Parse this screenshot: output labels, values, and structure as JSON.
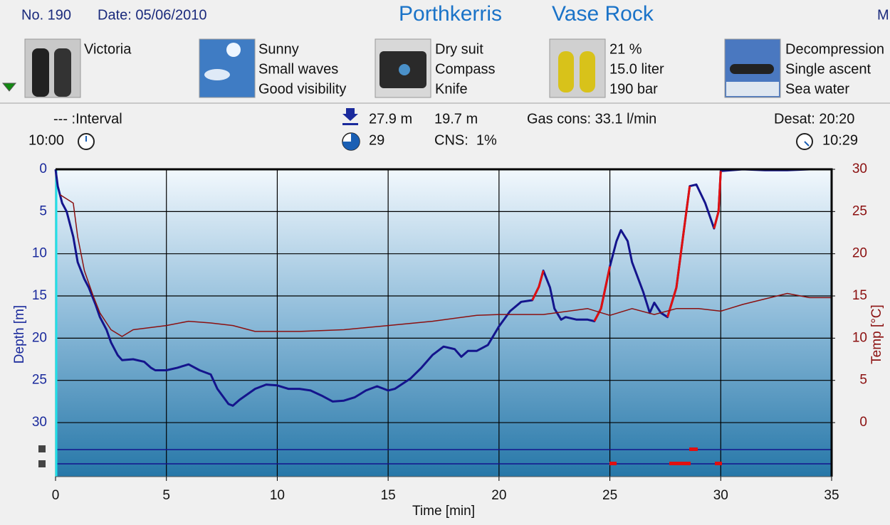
{
  "header": {
    "number": "No. 190",
    "date": "Date: 05/06/2010",
    "site": "Porthkerris",
    "location": "Vase Rock",
    "extra": "M"
  },
  "panels": [
    {
      "lines": [
        "Victoria"
      ]
    },
    {
      "lines": [
        "Sunny",
        "Small waves",
        "Good visibility"
      ]
    },
    {
      "lines": [
        "Dry suit",
        "Compass",
        "Knife"
      ]
    },
    {
      "lines": [
        "21 %",
        "15.0 liter",
        "190 bar"
      ]
    },
    {
      "lines": [
        "Decompression",
        "Single ascent",
        "Sea water"
      ]
    }
  ],
  "stats": {
    "interval": "--- :Interval",
    "surface_time": "10:00",
    "max_depth": "27.9 m",
    "avg_depth": "19.7 m",
    "gas": "Gas cons: 33.1 l/min",
    "desat": "Desat: 20:20",
    "duration": "29",
    "cns": "CNS:  1%",
    "end_time": "10:29"
  },
  "chart_data": {
    "type": "line",
    "xlabel": "Time [min]",
    "ylabel": "Depth [m]",
    "y2label": "Temp [°C]",
    "xlim": [
      0,
      35
    ],
    "xticks": [
      0,
      5,
      10,
      15,
      20,
      25,
      30,
      35
    ],
    "ylim": [
      0,
      36.4
    ],
    "y_reversed": true,
    "yticks": [
      0,
      5,
      10,
      15,
      20,
      25,
      30
    ],
    "y2lim": [
      -6.4,
      30
    ],
    "y2ticks": [
      0,
      5,
      10,
      15,
      20,
      25,
      30
    ],
    "grid": true,
    "series": [
      {
        "color": "#14148c",
        "x": [
          0,
          0.1,
          0.3,
          0.5,
          0.8,
          1,
          1.3,
          1.5,
          1.8,
          2,
          2.3,
          2.5,
          2.8,
          3,
          3.5,
          4,
          4.3,
          4.5,
          5,
          5.5,
          6,
          6.5,
          7,
          7.3,
          7.8,
          8,
          8.3,
          9,
          9.5,
          10,
          10.5,
          11,
          11.5,
          12,
          12.5,
          13,
          13.5,
          14,
          14.5,
          15,
          15.3,
          16,
          16.5,
          17,
          17.5,
          18,
          18.3,
          18.6,
          19,
          19.5,
          20,
          20.5,
          21,
          21.5,
          21.8,
          22,
          22.3,
          22.5,
          22.8,
          23,
          23.5,
          24,
          24.3,
          24.6,
          25,
          25.3,
          25.5,
          25.8,
          26,
          26.5,
          26.8,
          27,
          27.3,
          27.6,
          28,
          28.3,
          28.6,
          28.9,
          29.3,
          29.7,
          29.9,
          30,
          31,
          32,
          33,
          34,
          35
        ],
        "values": [
          0,
          2,
          4,
          5,
          8,
          11,
          13,
          14,
          16,
          17.5,
          19,
          20.5,
          22,
          22.6,
          22.5,
          22.8,
          23.5,
          23.8,
          23.8,
          23.5,
          23.1,
          23.8,
          24.3,
          26,
          27.8,
          28,
          27.3,
          26,
          25.5,
          25.6,
          26,
          26,
          26.2,
          26.8,
          27.5,
          27.4,
          27,
          26.2,
          25.7,
          26.2,
          26,
          24.8,
          23.5,
          22,
          21,
          21.3,
          22.2,
          21.5,
          21.5,
          20.8,
          18.6,
          16.8,
          15.7,
          15.5,
          13.9,
          12,
          14,
          16.5,
          17.8,
          17.5,
          17.8,
          17.8,
          18,
          16.5,
          11.5,
          8.5,
          7.2,
          8.5,
          11,
          14.5,
          17,
          15.8,
          17,
          17.5,
          14,
          8,
          2,
          1.8,
          4,
          7,
          5,
          0.2,
          0,
          0.1,
          0.1,
          0,
          0
        ]
      },
      {
        "color": "#e01010",
        "x": [
          21.5,
          21.8,
          22,
          null,
          24.3,
          24.6,
          25,
          null,
          27.6,
          28,
          28.3,
          28.6,
          null,
          29.7,
          29.9,
          30
        ],
        "values": [
          15.5,
          13.9,
          12,
          null,
          18,
          16.5,
          11.5,
          null,
          17.5,
          14,
          8,
          2,
          null,
          7,
          5,
          0.2
        ]
      },
      {
        "color": "#8b1010",
        "axis": "y2",
        "x": [
          0.2,
          0.8,
          1,
          1.3,
          1.7,
          2,
          2.5,
          3,
          3.5,
          5,
          6,
          7,
          8,
          9,
          11,
          13,
          15,
          17,
          19,
          20,
          22,
          24,
          25,
          26,
          27,
          28,
          29,
          30,
          31,
          33,
          34,
          35
        ],
        "values": [
          27,
          26,
          22,
          18,
          15,
          13,
          11,
          10.2,
          11,
          11.5,
          12,
          11.8,
          11.5,
          10.8,
          10.8,
          11,
          11.5,
          12,
          12.7,
          12.8,
          12.8,
          13.5,
          12.7,
          13.5,
          12.8,
          13.5,
          13.5,
          13.2,
          14,
          15.3,
          14.8,
          14.8
        ]
      }
    ]
  }
}
